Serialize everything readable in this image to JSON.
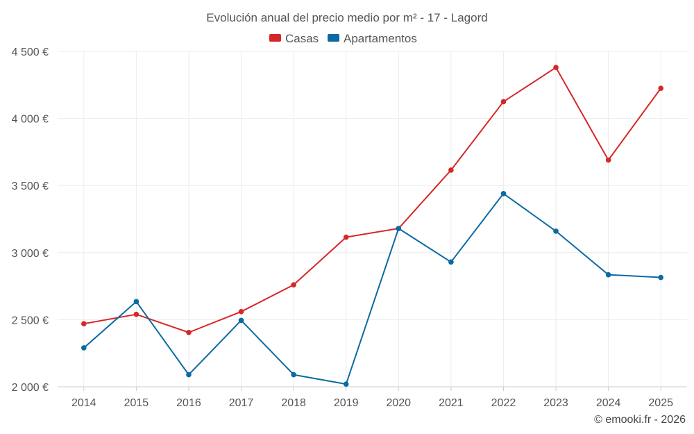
{
  "chart_data": {
    "type": "line",
    "title": "Evolución anual del precio medio por m² - 17 - Lagord",
    "categories": [
      "2014",
      "2015",
      "2016",
      "2017",
      "2018",
      "2019",
      "2020",
      "2021",
      "2022",
      "2023",
      "2024",
      "2025"
    ],
    "series": [
      {
        "name": "Casas",
        "color": "#d62728",
        "values": [
          2470,
          2540,
          2405,
          2560,
          2760,
          3115,
          3180,
          3615,
          4125,
          4380,
          3690,
          4225
        ]
      },
      {
        "name": "Apartamentos",
        "color": "#0b6aa2",
        "values": [
          2290,
          2635,
          2090,
          2495,
          2090,
          2020,
          3180,
          2930,
          3440,
          3160,
          2835,
          2815
        ]
      }
    ],
    "ylim": [
      2000,
      4500
    ],
    "yticks": [
      2000,
      2500,
      3000,
      3500,
      4000,
      4500
    ],
    "ytick_labels": [
      "2 000 €",
      "2 500 €",
      "3 000 €",
      "3 500 €",
      "4 000 €",
      "4 500 €"
    ],
    "xlabel": "",
    "ylabel": "",
    "legend_position": "top-center",
    "grid": true
  },
  "credit": "© emooki.fr - 2026"
}
